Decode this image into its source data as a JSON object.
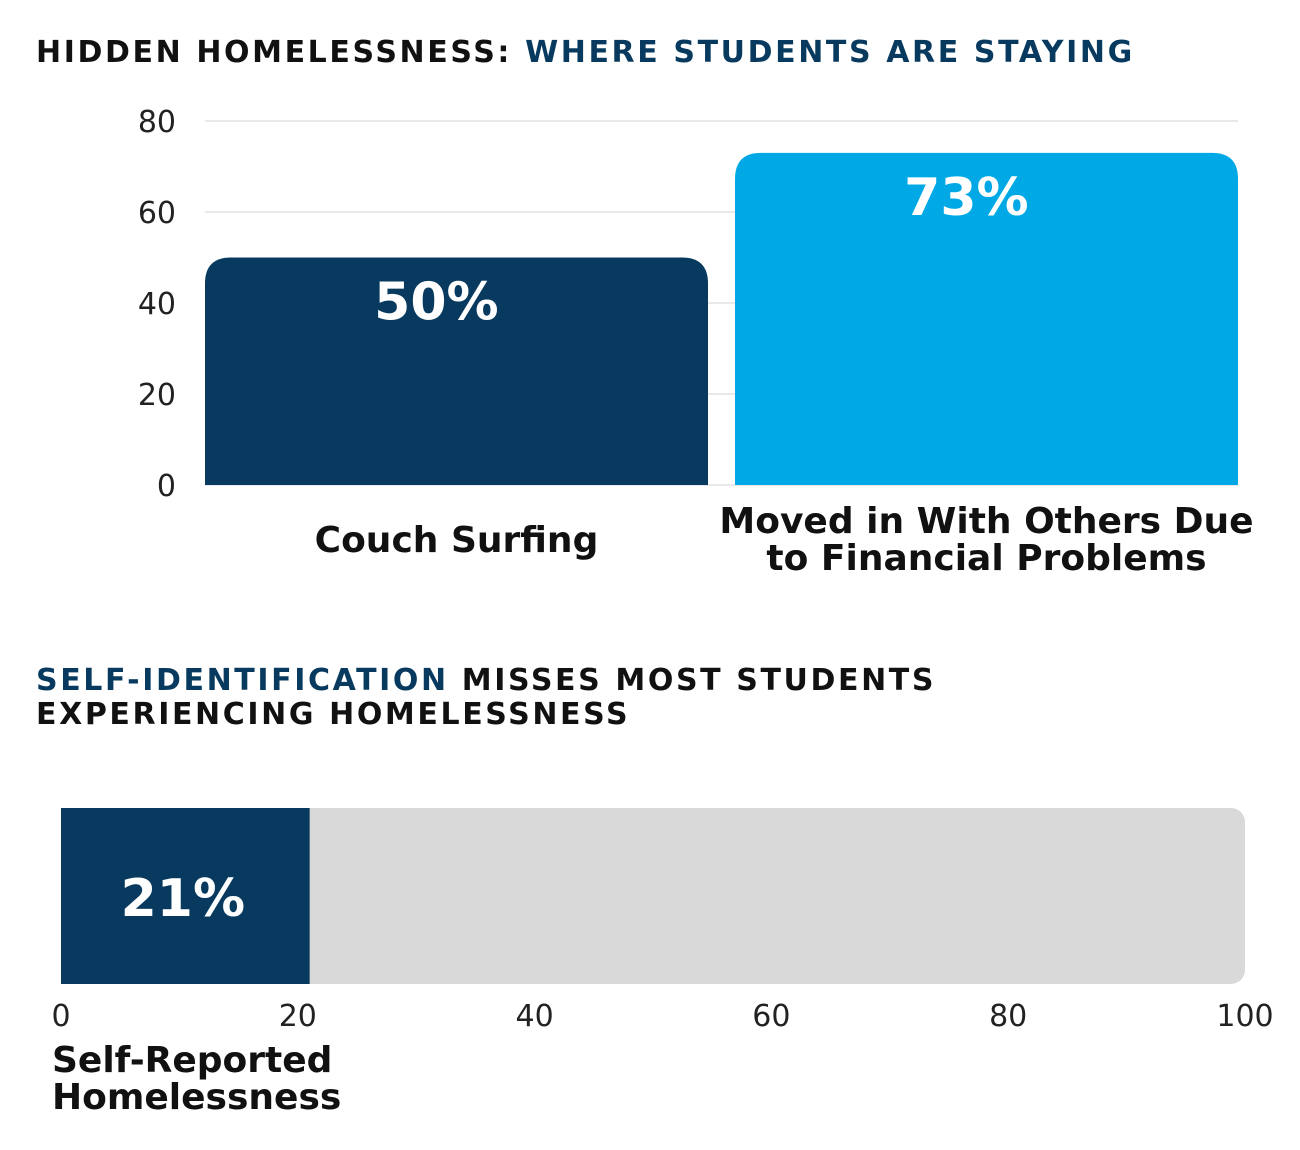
{
  "colors": {
    "dark_navy": "#073a5e",
    "light_blue": "#00a9e6",
    "track_gray": "#d9d9d9",
    "grid": "#e2e2e2",
    "text_dark": "#111111"
  },
  "chart_data": [
    {
      "type": "bar",
      "title_parts": [
        "HIDDEN HOMELESSNESS: ",
        "WHERE STUDENTS ARE STAYING"
      ],
      "categories": [
        [
          "Couch Surfing"
        ],
        [
          "Moved in With Others Due",
          "to Financial Problems"
        ]
      ],
      "values": [
        50,
        73
      ],
      "value_labels": [
        "50%",
        "73%"
      ],
      "bar_colors": [
        "#073a5e",
        "#00a9e6"
      ],
      "ylim": [
        0,
        80
      ],
      "yticks": [
        0,
        20,
        40,
        60,
        80
      ],
      "grid": true,
      "orientation": "vertical"
    },
    {
      "type": "bar",
      "orientation": "horizontal",
      "title_parts": [
        "SELF-IDENTIFICATION",
        " MISSES MOST STUDENTS",
        "EXPERIENCING HOMELESSNESS"
      ],
      "value": 21,
      "value_label": "21%",
      "xlim": [
        0,
        100
      ],
      "xticks": [
        0,
        20,
        40,
        60,
        80,
        100
      ],
      "label_lines": [
        "Self-Reported",
        "Homelessness"
      ],
      "bar_color": "#073a5e",
      "track_color": "#d9d9d9"
    }
  ]
}
